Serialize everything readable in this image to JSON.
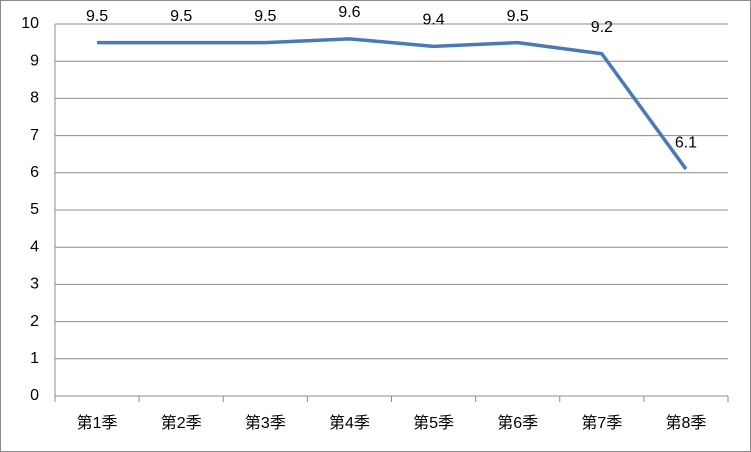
{
  "chart_data": {
    "type": "line",
    "categories": [
      "第1季",
      "第2季",
      "第3季",
      "第4季",
      "第5季",
      "第6季",
      "第7季",
      "第8季"
    ],
    "series": [
      {
        "color": "#4a7ab5",
        "values": [
          9.5,
          9.5,
          9.5,
          9.6,
          9.4,
          9.5,
          9.2,
          6.1
        ]
      }
    ],
    "ylim": [
      0,
      10
    ],
    "yticks": [
      0,
      1,
      2,
      3,
      4,
      5,
      6,
      7,
      8,
      9,
      10
    ],
    "grid": true
  }
}
